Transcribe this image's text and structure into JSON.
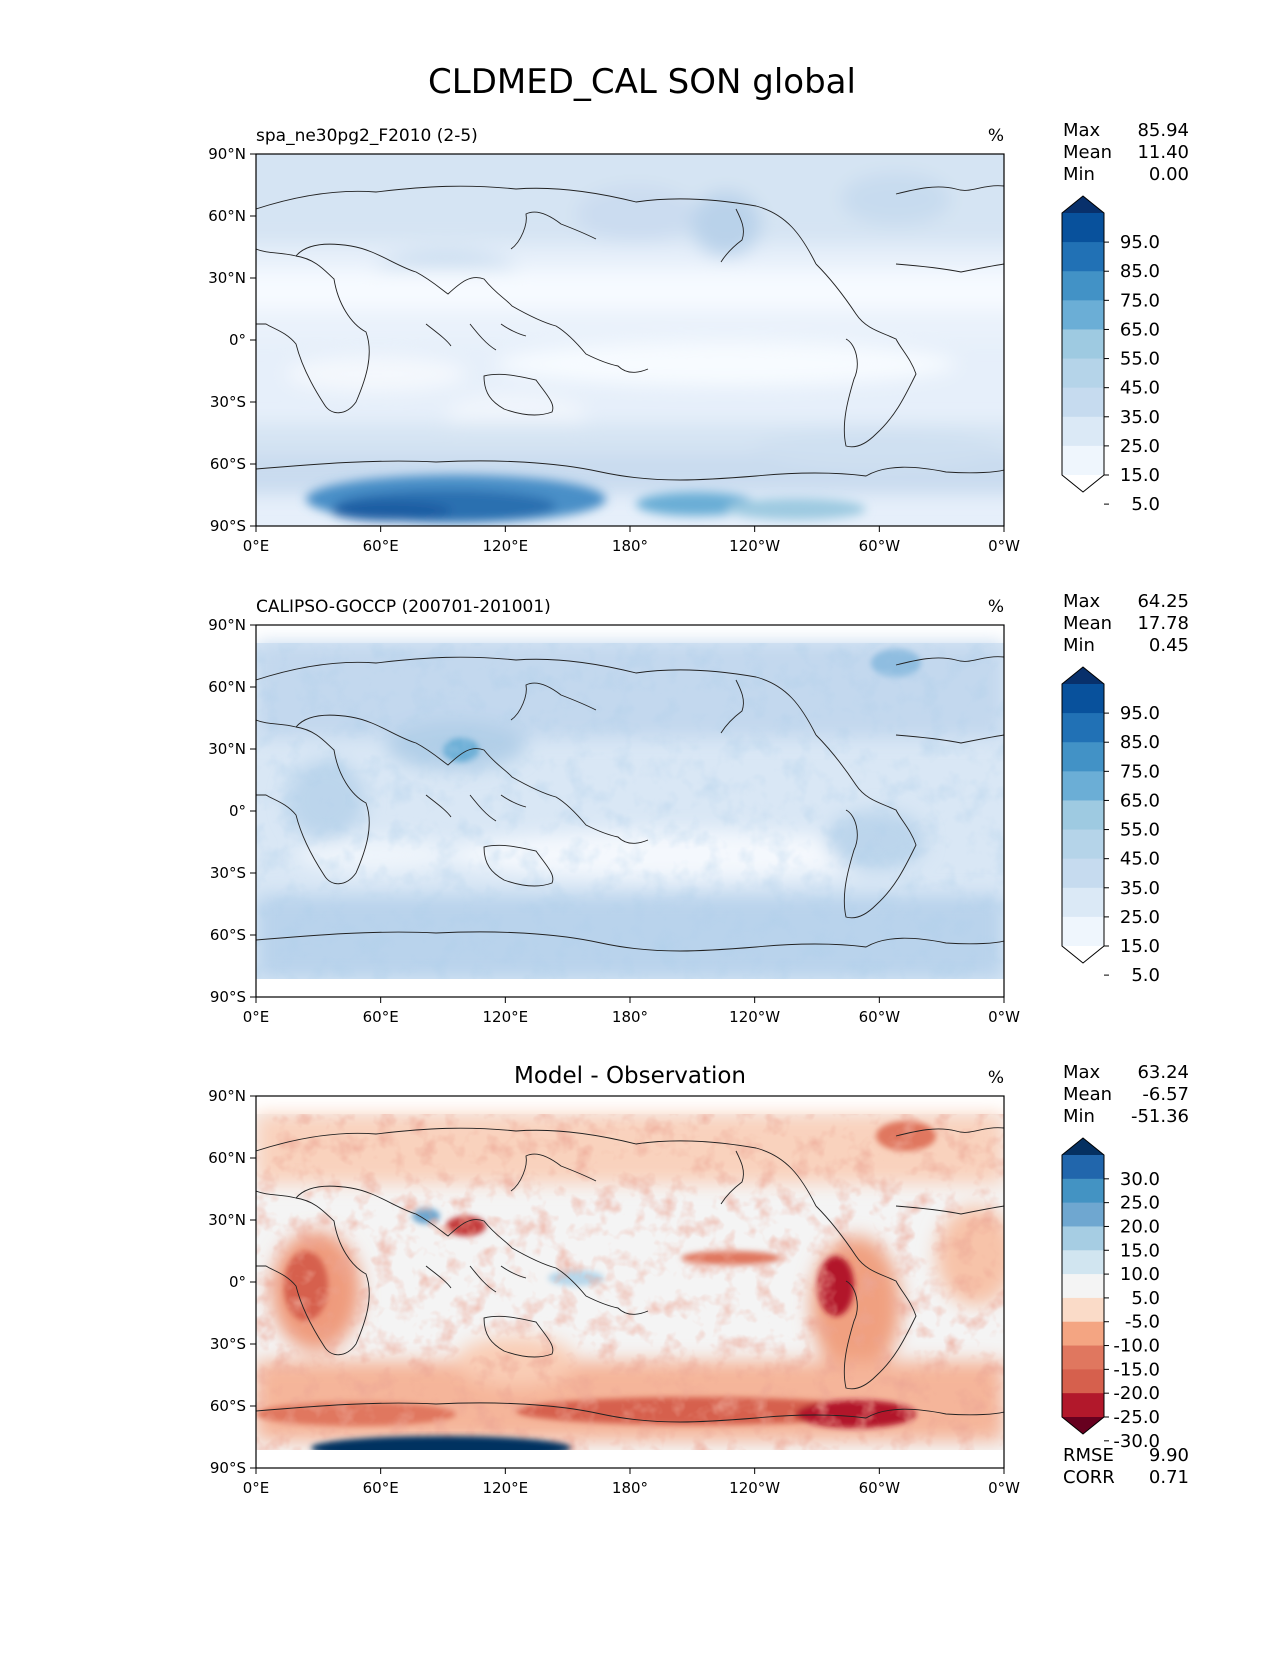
{
  "figure": {
    "title": "CLDMED_CAL SON global"
  },
  "axes": {
    "x_ticks": [
      "0°E",
      "60°E",
      "120°E",
      "180°",
      "120°W",
      "60°W",
      "0°W"
    ],
    "y_ticks": [
      "90°N",
      "60°N",
      "30°N",
      "0°",
      "30°S",
      "60°S",
      "90°S"
    ]
  },
  "panels": [
    {
      "id": "test",
      "left_title": "spa_ne30pg2_F2010 (2-5)",
      "center_title": "",
      "units": "%",
      "stats": [
        {
          "label": "Max",
          "value": "85.94"
        },
        {
          "label": "Mean",
          "value": "11.40"
        },
        {
          "label": "Min",
          "value": "0.00"
        }
      ],
      "colorbar": {
        "levels": [
          "95.0",
          "85.0",
          "75.0",
          "65.0",
          "55.0",
          "45.0",
          "35.0",
          "25.0",
          "15.0",
          "5.0"
        ],
        "colors": [
          "#08306b",
          "#08519c",
          "#2171b5",
          "#4292c6",
          "#6baed6",
          "#9ecae1",
          "#b5d4e9",
          "#c6dbef",
          "#dbe9f6",
          "#eff6fd",
          "#ffffff"
        ]
      }
    },
    {
      "id": "reference",
      "left_title": "CALIPSO-GOCCP (200701-201001)",
      "center_title": "",
      "units": "%",
      "stats": [
        {
          "label": "Max",
          "value": "64.25"
        },
        {
          "label": "Mean",
          "value": "17.78"
        },
        {
          "label": "Min",
          "value": "0.45"
        }
      ],
      "colorbar": {
        "levels": [
          "95.0",
          "85.0",
          "75.0",
          "65.0",
          "55.0",
          "45.0",
          "35.0",
          "25.0",
          "15.0",
          "5.0"
        ],
        "colors": [
          "#08306b",
          "#08519c",
          "#2171b5",
          "#4292c6",
          "#6baed6",
          "#9ecae1",
          "#b5d4e9",
          "#c6dbef",
          "#dbe9f6",
          "#eff6fd",
          "#ffffff"
        ]
      }
    },
    {
      "id": "difference",
      "left_title": "",
      "center_title": "Model - Observation",
      "units": "%",
      "stats": [
        {
          "label": "Max",
          "value": "63.24"
        },
        {
          "label": "Mean",
          "value": "-6.57"
        },
        {
          "label": "Min",
          "value": "-51.36"
        }
      ],
      "extra_stats": [
        {
          "label": "RMSE",
          "value": "9.90"
        },
        {
          "label": "CORR",
          "value": "0.71"
        }
      ],
      "colorbar": {
        "levels": [
          "30.0",
          "25.0",
          "20.0",
          "15.0",
          "10.0",
          "5.0",
          "-5.0",
          "-10.0",
          "-15.0",
          "-20.0",
          "-25.0",
          "-30.0"
        ],
        "colors": [
          "#053061",
          "#2166ac",
          "#4393c3",
          "#6fa7d0",
          "#a6cde3",
          "#d1e5f0",
          "#f4f4f4",
          "#fadbc8",
          "#f4a582",
          "#e0775f",
          "#d6604d",
          "#b2182b",
          "#67001f"
        ]
      }
    }
  ]
}
